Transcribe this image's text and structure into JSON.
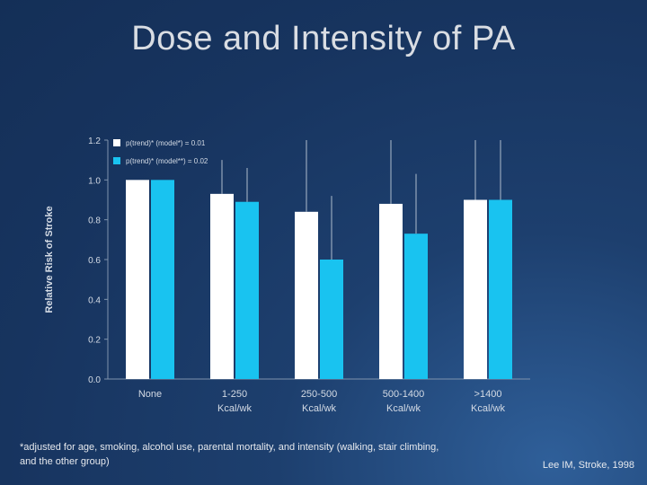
{
  "slide": {
    "title": "Dose and Intensity of PA",
    "footnote": "*adjusted for age, smoking, alcohol use, parental mortality, and intensity (walking, stair climbing, and the other group)",
    "citation": "Lee IM, Stroke, 1998"
  },
  "chart_data": {
    "type": "bar",
    "title": "",
    "ylabel": "Relative Risk of Stroke",
    "xlabel": "",
    "ylim": [
      0,
      1.2
    ],
    "yticks": [
      "0.0",
      "0.2",
      "0.4",
      "0.6",
      "0.8",
      "1.0",
      "1.2"
    ],
    "categories": [
      [
        "None"
      ],
      [
        "1-250",
        "Kcal/wk"
      ],
      [
        "250-500",
        "Kcal/wk"
      ],
      [
        "500-1400",
        "Kcal/wk"
      ],
      [
        ">1400",
        "Kcal/wk"
      ]
    ],
    "legend_position": "top-left",
    "series": [
      {
        "name": "p(trend)* (model*) = 0.01",
        "color": "#ffffff",
        "values": [
          1.0,
          0.93,
          0.84,
          0.88,
          0.9
        ],
        "error_upper": [
          1.0,
          1.1,
          1.2,
          1.2,
          1.2
        ]
      },
      {
        "name": "p(trend)* (model**) = 0.02",
        "color": "#19c3f0",
        "values": [
          1.0,
          0.89,
          0.6,
          0.73,
          0.9
        ],
        "error_upper": [
          1.0,
          1.06,
          0.92,
          1.03,
          1.2
        ]
      }
    ]
  }
}
